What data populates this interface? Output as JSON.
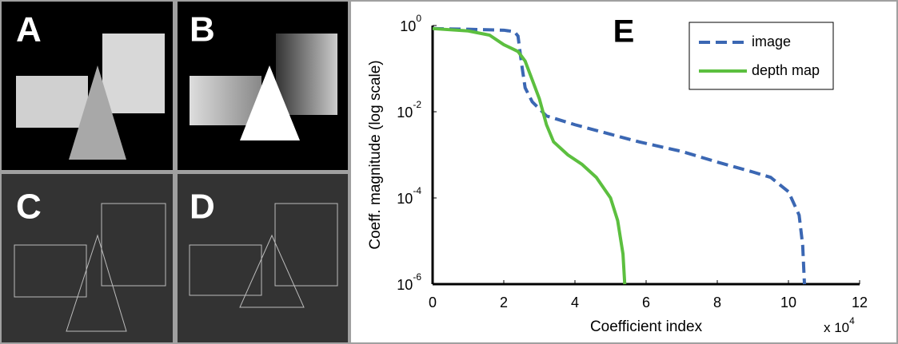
{
  "panels": [
    {
      "label": "A"
    },
    {
      "label": "B"
    },
    {
      "label": "C"
    },
    {
      "label": "D"
    }
  ],
  "chart_data": {
    "type": "line",
    "title": "E",
    "x_label": "Coefficient index",
    "y_label": "Coeff. magnitude (log scale)",
    "x_multiplier": {
      "base": "x 10",
      "exponent": "4"
    },
    "xlim": [
      0,
      12
    ],
    "xticks": [
      0,
      2,
      4,
      6,
      8,
      10,
      12
    ],
    "ylim": [
      1e-06,
      1
    ],
    "yscale": "log",
    "yticks": [
      {
        "value": 1,
        "label": "10",
        "exponent": "0"
      },
      {
        "value": 0.01,
        "label": "10",
        "exponent": "-2"
      },
      {
        "value": 0.0001,
        "label": "10",
        "exponent": "-4"
      },
      {
        "value": 1e-06,
        "label": "10",
        "exponent": "-6"
      }
    ],
    "grid": false,
    "legend": "top-right",
    "series": [
      {
        "name": "image",
        "color": "#3b67b3",
        "dash": "dashed",
        "x": [
          0,
          1,
          2,
          2.3,
          2.4,
          2.5,
          2.6,
          2.8,
          3.2,
          4,
          5,
          5.8,
          7,
          8,
          9,
          9.5,
          10,
          10.3,
          10.4,
          10.45
        ],
        "values": [
          0.85,
          0.82,
          0.78,
          0.72,
          0.57,
          0.13,
          0.036,
          0.017,
          0.008,
          0.005,
          0.003,
          0.002,
          0.0012,
          0.00068,
          0.0004,
          0.0003,
          0.00014,
          4e-05,
          8e-06,
          1e-06
        ]
      },
      {
        "name": "depth map",
        "color": "#5cbf3f",
        "dash": "solid",
        "x": [
          0,
          1,
          1.6,
          2.0,
          2.2,
          2.4,
          2.6,
          2.8,
          3.0,
          3.2,
          3.4,
          3.8,
          4.2,
          4.6,
          5.0,
          5.2,
          5.35,
          5.4
        ],
        "values": [
          0.85,
          0.75,
          0.6,
          0.36,
          0.3,
          0.25,
          0.15,
          0.055,
          0.02,
          0.005,
          0.002,
          0.001,
          0.0006,
          0.0003,
          0.0001,
          3e-05,
          5e-06,
          1e-06
        ]
      }
    ]
  }
}
